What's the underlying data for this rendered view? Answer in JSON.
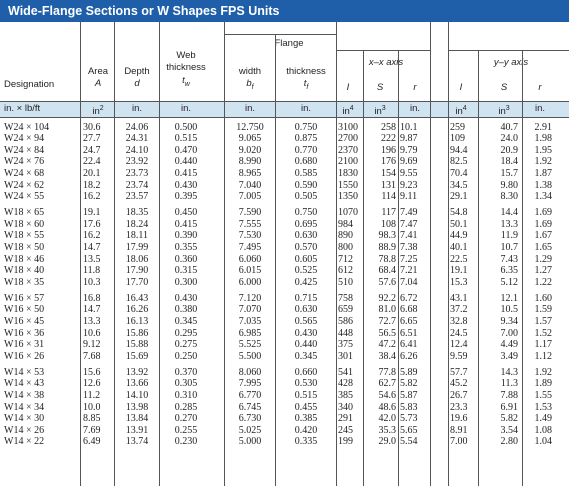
{
  "title": "Wide-Flange Sections or W Shapes FPS Units",
  "headers": {
    "flange": "Flange",
    "xaxis": "x–x axis",
    "yaxis": "y–y axis",
    "designation": "Designation",
    "area": "Area",
    "area_sym": "A",
    "depth": "Depth",
    "depth_sym": "d",
    "web_line1": "Web",
    "web_line2": "thickness",
    "web_sym": "t",
    "web_sub": "w",
    "width": "width",
    "width_sym": "b",
    "width_sub": "f",
    "fthick": "thickness",
    "fthick_sym": "t",
    "fthick_sub": "f",
    "I": "I",
    "S": "S",
    "r": "r"
  },
  "units": {
    "designation": "in. × lb/ft",
    "area": "in",
    "area_exp": "2",
    "depth": "in.",
    "web": "in.",
    "width": "in.",
    "fthick": "in.",
    "Ix": "in",
    "Ix_exp": "4",
    "Sx": "in",
    "Sx_exp": "3",
    "rx": "in.",
    "Iy": "in",
    "Iy_exp": "4",
    "Sy": "in",
    "Sy_exp": "3",
    "ry": "in."
  },
  "rows": [
    [
      "W24 × 104",
      "30.6",
      "24.06",
      "0.500",
      "12.750",
      "0.750",
      "3100",
      "258",
      "10.1",
      "259",
      "40.7",
      "2.91"
    ],
    [
      "W24 × 94",
      "27.7",
      "24.31",
      "0.515",
      "9.065",
      "0.875",
      "2700",
      "222",
      "9.87",
      "109",
      "24.0",
      "1.98"
    ],
    [
      "W24 × 84",
      "24.7",
      "24.10",
      "0.470",
      "9.020",
      "0.770",
      "2370",
      "196",
      "9.79",
      "94.4",
      "20.9",
      "1.95"
    ],
    [
      "W24 × 76",
      "22.4",
      "23.92",
      "0.440",
      "8.990",
      "0.680",
      "2100",
      "176",
      "9.69",
      "82.5",
      "18.4",
      "1.92"
    ],
    [
      "W24 × 68",
      "20.1",
      "23.73",
      "0.415",
      "8.965",
      "0.585",
      "1830",
      "154",
      "9.55",
      "70.4",
      "15.7",
      "1.87"
    ],
    [
      "W24 × 62",
      "18.2",
      "23.74",
      "0.430",
      "7.040",
      "0.590",
      "1550",
      "131",
      "9.23",
      "34.5",
      "9.80",
      "1.38"
    ],
    [
      "W24 × 55",
      "16.2",
      "23.57",
      "0.395",
      "7.005",
      "0.505",
      "1350",
      "114",
      "9.11",
      "29.1",
      "8.30",
      "1.34"
    ],
    [
      "W18 × 65",
      "19.1",
      "18.35",
      "0.450",
      "7.590",
      "0.750",
      "1070",
      "117",
      "7.49",
      "54.8",
      "14.4",
      "1.69"
    ],
    [
      "W18 × 60",
      "17.6",
      "18.24",
      "0.415",
      "7.555",
      "0.695",
      "984",
      "108",
      "7.47",
      "50.1",
      "13.3",
      "1.69"
    ],
    [
      "W18 × 55",
      "16.2",
      "18.11",
      "0.390",
      "7.530",
      "0.630",
      "890",
      "98.3",
      "7.41",
      "44.9",
      "11.9",
      "1.67"
    ],
    [
      "W18 × 50",
      "14.7",
      "17.99",
      "0.355",
      "7.495",
      "0.570",
      "800",
      "88.9",
      "7.38",
      "40.1",
      "10.7",
      "1.65"
    ],
    [
      "W18 × 46",
      "13.5",
      "18.06",
      "0.360",
      "6.060",
      "0.605",
      "712",
      "78.8",
      "7.25",
      "22.5",
      "7.43",
      "1.29"
    ],
    [
      "W18 × 40",
      "11.8",
      "17.90",
      "0.315",
      "6.015",
      "0.525",
      "612",
      "68.4",
      "7.21",
      "19.1",
      "6.35",
      "1.27"
    ],
    [
      "W18 × 35",
      "10.3",
      "17.70",
      "0.300",
      "6.000",
      "0.425",
      "510",
      "57.6",
      "7.04",
      "15.3",
      "5.12",
      "1.22"
    ],
    [
      "W16 × 57",
      "16.8",
      "16.43",
      "0.430",
      "7.120",
      "0.715",
      "758",
      "92.2",
      "6.72",
      "43.1",
      "12.1",
      "1.60"
    ],
    [
      "W16 × 50",
      "14.7",
      "16.26",
      "0.380",
      "7.070",
      "0.630",
      "659",
      "81.0",
      "6.68",
      "37.2",
      "10.5",
      "1.59"
    ],
    [
      "W16 × 45",
      "13.3",
      "16.13",
      "0.345",
      "7.035",
      "0.565",
      "586",
      "72.7",
      "6.65",
      "32.8",
      "9.34",
      "1.57"
    ],
    [
      "W16 × 36",
      "10.6",
      "15.86",
      "0.295",
      "6.985",
      "0.430",
      "448",
      "56.5",
      "6.51",
      "24.5",
      "7.00",
      "1.52"
    ],
    [
      "W16 × 31",
      "9.12",
      "15.88",
      "0.275",
      "5.525",
      "0.440",
      "375",
      "47.2",
      "6.41",
      "12.4",
      "4.49",
      "1.17"
    ],
    [
      "W16 × 26",
      "7.68",
      "15.69",
      "0.250",
      "5.500",
      "0.345",
      "301",
      "38.4",
      "6.26",
      "9.59",
      "3.49",
      "1.12"
    ],
    [
      "W14 × 53",
      "15.6",
      "13.92",
      "0.370",
      "8.060",
      "0.660",
      "541",
      "77.8",
      "5.89",
      "57.7",
      "14.3",
      "1.92"
    ],
    [
      "W14 × 43",
      "12.6",
      "13.66",
      "0.305",
      "7.995",
      "0.530",
      "428",
      "62.7",
      "5.82",
      "45.2",
      "11.3",
      "1.89"
    ],
    [
      "W14 × 38",
      "11.2",
      "14.10",
      "0.310",
      "6.770",
      "0.515",
      "385",
      "54.6",
      "5.87",
      "26.7",
      "7.88",
      "1.55"
    ],
    [
      "W14 × 34",
      "10.0",
      "13.98",
      "0.285",
      "6.745",
      "0.455",
      "340",
      "48.6",
      "5.83",
      "23.3",
      "6.91",
      "1.53"
    ],
    [
      "W14 × 30",
      "8.85",
      "13.84",
      "0.270",
      "6.730",
      "0.385",
      "291",
      "42.0",
      "5.73",
      "19.6",
      "5.82",
      "1.49"
    ],
    [
      "W14 × 26",
      "7.69",
      "13.91",
      "0.255",
      "5.025",
      "0.420",
      "245",
      "35.3",
      "5.65",
      "8.91",
      "3.54",
      "1.08"
    ],
    [
      "W14 × 22",
      "6.49",
      "13.74",
      "0.230",
      "5.000",
      "0.335",
      "199",
      "29.0",
      "5.54",
      "7.00",
      "2.80",
      "1.04"
    ]
  ],
  "colors": {
    "title_bg": "#1f5fa9",
    "unit_bg": "#cfe3f1",
    "row_shade": "#e4eff8"
  }
}
